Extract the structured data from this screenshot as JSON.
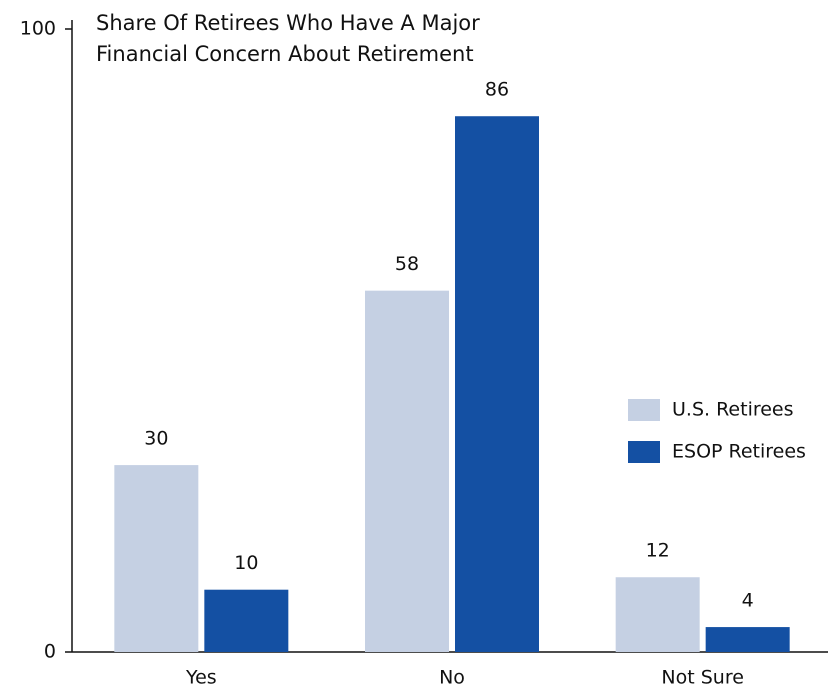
{
  "chart_data": {
    "type": "bar",
    "title": "Share Of Retirees Who Have A Major Financial Concern About Retirement",
    "categories": [
      "Yes",
      "No",
      "Not Sure"
    ],
    "series": [
      {
        "name": "U.S. Retirees",
        "color": "#c5d0e3",
        "values": [
          30,
          58,
          12
        ]
      },
      {
        "name": "ESOP Retirees",
        "color": "#1450a3",
        "values": [
          10,
          86,
          4
        ]
      }
    ],
    "ylim": [
      0,
      100
    ],
    "yticks": [
      0,
      100
    ],
    "legend": "right"
  }
}
